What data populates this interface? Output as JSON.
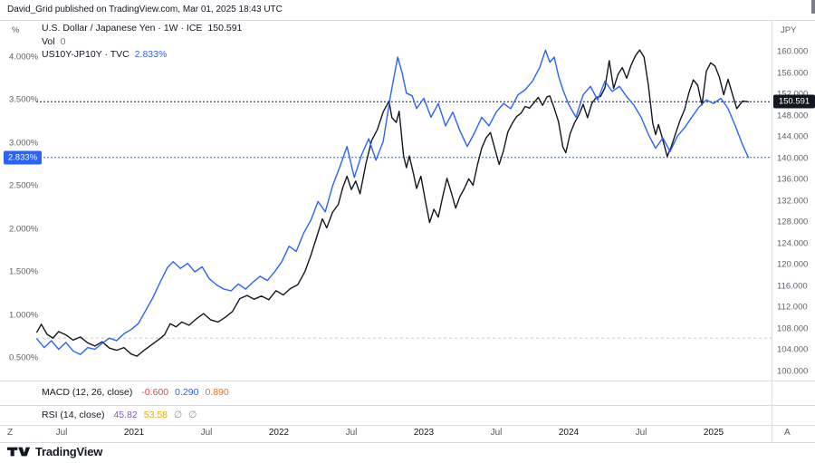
{
  "header": {
    "attribution": "David_Grid published on TradingView.com, Mar 01, 2025 18:43 UTC"
  },
  "legend": {
    "symbol_row": {
      "title": "U.S. Dollar / Japanese Yen · 1W · ICE",
      "value": "150.591"
    },
    "volume_row": {
      "title": "Vol",
      "value": "0"
    },
    "spread_row": {
      "title": "US10Y-JP10Y · TVC",
      "value": "2.833%"
    }
  },
  "axes": {
    "left": {
      "unit": "%",
      "ticks": [
        4.0,
        3.5,
        3.0,
        2.5,
        2.0,
        1.5,
        1.0,
        0.5
      ],
      "badge": {
        "label": "2.833%",
        "value": 2.833,
        "bg": "#2962ff"
      }
    },
    "right": {
      "unit": "JPY",
      "ticks": [
        160,
        156,
        152,
        148,
        144,
        140,
        136,
        132,
        128,
        124,
        120,
        116,
        112,
        108,
        104,
        100
      ],
      "badge": {
        "label": "150.591",
        "value": 150.591,
        "bg": "#131722"
      }
    },
    "time": {
      "ticks": [
        {
          "label": "Jul",
          "year": 2020.5
        },
        {
          "label": "2021",
          "year": 2021
        },
        {
          "label": "Jul",
          "year": 2021.5
        },
        {
          "label": "2022",
          "year": 2022
        },
        {
          "label": "Jul",
          "year": 2022.5
        },
        {
          "label": "2023",
          "year": 2023
        },
        {
          "label": "Jul",
          "year": 2023.5
        },
        {
          "label": "2024",
          "year": 2024
        },
        {
          "label": "Jul",
          "year": 2024.5
        },
        {
          "label": "2025",
          "year": 2025
        }
      ],
      "left_hint": "Z",
      "right_hint": "A"
    }
  },
  "indicators": [
    {
      "name": "MACD (12, 26, close)",
      "values": [
        {
          "text": "-0.600",
          "color": "#f23645"
        },
        {
          "text": "0.290",
          "color": "#2962ff"
        },
        {
          "text": "0.890",
          "color": "#ff6d00"
        }
      ]
    },
    {
      "name": "RSI (14, close)",
      "values": [
        {
          "text": "45.82",
          "color": "#7e57c2"
        },
        {
          "text": "53.58",
          "color": "#e6b000"
        },
        {
          "text": "∅",
          "color": "#9598a1"
        },
        {
          "text": "∅",
          "color": "#9598a1"
        }
      ]
    }
  ],
  "footer": {
    "brand": "TradingView"
  },
  "chart_data": {
    "type": "line",
    "title": "USD/JPY (1W) vs US10Y-JP10Y yield spread",
    "x_unit": "decimal_year",
    "x_range": [
      2020.3,
      2025.3
    ],
    "left_axis": {
      "unit": "%",
      "range": [
        0.3,
        4.4
      ],
      "ticks": [
        0.5,
        1.0,
        1.5,
        2.0,
        2.5,
        3.0,
        3.5,
        4.0
      ]
    },
    "right_axis": {
      "unit": "JPY",
      "range": [
        98,
        164
      ],
      "ticks": [
        100,
        104,
        108,
        112,
        116,
        120,
        124,
        128,
        132,
        136,
        140,
        144,
        148,
        152,
        156,
        160
      ]
    },
    "grid": false,
    "legend_position": "top-left",
    "reference_lines": [
      {
        "id": "usdjpy-last-price-line",
        "axis": "right",
        "value": 150.591,
        "color": "#131722",
        "dash": "2 2"
      },
      {
        "id": "spread-last-price-line",
        "axis": "left",
        "value": 2.833,
        "color": "#2962ff",
        "dash": "2 2"
      },
      {
        "id": "volume-baseline-line",
        "axis": "right",
        "value": 106.2,
        "color": "#c5c8d0",
        "dash": "3 3"
      }
    ],
    "series": [
      {
        "id": "usdjpy-series",
        "name": "U.S. Dollar / Japanese Yen (1W, ICE)",
        "axis": "right",
        "unit": "JPY",
        "color": "#131722",
        "last": 150.591,
        "points": [
          [
            2020.33,
            107.3
          ],
          [
            2020.36,
            108.8
          ],
          [
            2020.4,
            106.9
          ],
          [
            2020.44,
            106.2
          ],
          [
            2020.48,
            107.4
          ],
          [
            2020.53,
            106.8
          ],
          [
            2020.58,
            105.8
          ],
          [
            2020.63,
            106.4
          ],
          [
            2020.68,
            105.3
          ],
          [
            2020.73,
            104.7
          ],
          [
            2020.78,
            105.5
          ],
          [
            2020.83,
            104.3
          ],
          [
            2020.88,
            103.9
          ],
          [
            2020.93,
            104.4
          ],
          [
            2020.98,
            103.2
          ],
          [
            2021.02,
            102.8
          ],
          [
            2021.07,
            103.9
          ],
          [
            2021.12,
            104.9
          ],
          [
            2021.17,
            105.9
          ],
          [
            2021.21,
            106.8
          ],
          [
            2021.25,
            108.9
          ],
          [
            2021.29,
            108.3
          ],
          [
            2021.33,
            109.2
          ],
          [
            2021.38,
            108.6
          ],
          [
            2021.43,
            109.8
          ],
          [
            2021.48,
            110.8
          ],
          [
            2021.53,
            109.6
          ],
          [
            2021.58,
            109.2
          ],
          [
            2021.63,
            110.1
          ],
          [
            2021.68,
            111.2
          ],
          [
            2021.73,
            113.6
          ],
          [
            2021.78,
            114.2
          ],
          [
            2021.83,
            113.5
          ],
          [
            2021.88,
            114.1
          ],
          [
            2021.93,
            113.4
          ],
          [
            2021.98,
            115.1
          ],
          [
            2022.03,
            114.3
          ],
          [
            2022.08,
            115.5
          ],
          [
            2022.13,
            116.2
          ],
          [
            2022.18,
            118.7
          ],
          [
            2022.22,
            121.7
          ],
          [
            2022.26,
            125.1
          ],
          [
            2022.3,
            128.6
          ],
          [
            2022.33,
            126.9
          ],
          [
            2022.37,
            129.8
          ],
          [
            2022.41,
            131.3
          ],
          [
            2022.44,
            134.4
          ],
          [
            2022.47,
            136.6
          ],
          [
            2022.5,
            134.1
          ],
          [
            2022.53,
            135.7
          ],
          [
            2022.56,
            133.3
          ],
          [
            2022.6,
            138.9
          ],
          [
            2022.64,
            143.3
          ],
          [
            2022.68,
            145.4
          ],
          [
            2022.72,
            148.7
          ],
          [
            2022.76,
            150.7
          ],
          [
            2022.78,
            147.6
          ],
          [
            2022.81,
            146.7
          ],
          [
            2022.83,
            148.8
          ],
          [
            2022.86,
            140.5
          ],
          [
            2022.88,
            138.2
          ],
          [
            2022.9,
            140.4
          ],
          [
            2022.93,
            136.9
          ],
          [
            2022.95,
            134.3
          ],
          [
            2022.98,
            136.6
          ],
          [
            2023.01,
            132.1
          ],
          [
            2023.04,
            127.9
          ],
          [
            2023.07,
            130.4
          ],
          [
            2023.1,
            128.9
          ],
          [
            2023.13,
            132.7
          ],
          [
            2023.16,
            136.2
          ],
          [
            2023.19,
            133.5
          ],
          [
            2023.22,
            130.6
          ],
          [
            2023.25,
            132.8
          ],
          [
            2023.28,
            134.3
          ],
          [
            2023.31,
            136.1
          ],
          [
            2023.34,
            134.9
          ],
          [
            2023.37,
            138.7
          ],
          [
            2023.4,
            141.9
          ],
          [
            2023.43,
            143.8
          ],
          [
            2023.46,
            144.8
          ],
          [
            2023.49,
            141.8
          ],
          [
            2023.52,
            138.8
          ],
          [
            2023.55,
            141.4
          ],
          [
            2023.58,
            144.9
          ],
          [
            2023.61,
            146.5
          ],
          [
            2023.64,
            147.8
          ],
          [
            2023.67,
            148.4
          ],
          [
            2023.7,
            149.7
          ],
          [
            2023.73,
            149.4
          ],
          [
            2023.76,
            150.4
          ],
          [
            2023.79,
            151.4
          ],
          [
            2023.82,
            149.9
          ],
          [
            2023.85,
            151.5
          ],
          [
            2023.87,
            151.7
          ],
          [
            2023.9,
            149.4
          ],
          [
            2023.93,
            146.8
          ],
          [
            2023.96,
            142.1
          ],
          [
            2023.98,
            141.0
          ],
          [
            2024.01,
            144.6
          ],
          [
            2024.04,
            146.6
          ],
          [
            2024.07,
            148.1
          ],
          [
            2024.1,
            150.1
          ],
          [
            2024.13,
            147.6
          ],
          [
            2024.16,
            150.3
          ],
          [
            2024.19,
            151.4
          ],
          [
            2024.22,
            151.6
          ],
          [
            2024.25,
            153.2
          ],
          [
            2024.28,
            158.3
          ],
          [
            2024.31,
            153.1
          ],
          [
            2024.34,
            155.7
          ],
          [
            2024.37,
            157.0
          ],
          [
            2024.4,
            155.0
          ],
          [
            2024.43,
            157.4
          ],
          [
            2024.46,
            159.2
          ],
          [
            2024.49,
            160.3
          ],
          [
            2024.52,
            159.0
          ],
          [
            2024.55,
            153.7
          ],
          [
            2024.58,
            146.6
          ],
          [
            2024.6,
            144.4
          ],
          [
            2024.62,
            146.3
          ],
          [
            2024.65,
            143.4
          ],
          [
            2024.68,
            140.3
          ],
          [
            2024.71,
            142.3
          ],
          [
            2024.74,
            144.8
          ],
          [
            2024.77,
            147.2
          ],
          [
            2024.8,
            149.1
          ],
          [
            2024.83,
            152.3
          ],
          [
            2024.86,
            154.7
          ],
          [
            2024.89,
            153.7
          ],
          [
            2024.92,
            150.0
          ],
          [
            2024.95,
            156.3
          ],
          [
            2024.98,
            157.9
          ],
          [
            2025.01,
            157.3
          ],
          [
            2025.04,
            155.2
          ],
          [
            2025.07,
            151.9
          ],
          [
            2025.1,
            154.8
          ],
          [
            2025.13,
            152.0
          ],
          [
            2025.16,
            149.3
          ],
          [
            2025.2,
            150.7
          ],
          [
            2025.24,
            150.591
          ]
        ]
      },
      {
        "id": "spread-series",
        "name": "US10Y-JP10Y (TVC)",
        "axis": "left",
        "unit": "%",
        "color": "#2962ff",
        "last": 2.833,
        "points": [
          [
            2020.33,
            0.72
          ],
          [
            2020.38,
            0.62
          ],
          [
            2020.43,
            0.7
          ],
          [
            2020.48,
            0.6
          ],
          [
            2020.53,
            0.68
          ],
          [
            2020.58,
            0.58
          ],
          [
            2020.63,
            0.54
          ],
          [
            2020.68,
            0.62
          ],
          [
            2020.73,
            0.6
          ],
          [
            2020.78,
            0.67
          ],
          [
            2020.83,
            0.73
          ],
          [
            2020.88,
            0.7
          ],
          [
            2020.93,
            0.78
          ],
          [
            2020.98,
            0.83
          ],
          [
            2021.03,
            0.9
          ],
          [
            2021.08,
            1.05
          ],
          [
            2021.13,
            1.2
          ],
          [
            2021.18,
            1.38
          ],
          [
            2021.23,
            1.55
          ],
          [
            2021.27,
            1.62
          ],
          [
            2021.32,
            1.54
          ],
          [
            2021.37,
            1.6
          ],
          [
            2021.42,
            1.5
          ],
          [
            2021.47,
            1.56
          ],
          [
            2021.52,
            1.42
          ],
          [
            2021.57,
            1.35
          ],
          [
            2021.62,
            1.3
          ],
          [
            2021.67,
            1.28
          ],
          [
            2021.72,
            1.36
          ],
          [
            2021.77,
            1.3
          ],
          [
            2021.82,
            1.38
          ],
          [
            2021.87,
            1.45
          ],
          [
            2021.92,
            1.4
          ],
          [
            2021.97,
            1.5
          ],
          [
            2022.02,
            1.62
          ],
          [
            2022.07,
            1.8
          ],
          [
            2022.12,
            1.74
          ],
          [
            2022.17,
            1.95
          ],
          [
            2022.22,
            2.1
          ],
          [
            2022.27,
            2.32
          ],
          [
            2022.32,
            2.2
          ],
          [
            2022.37,
            2.5
          ],
          [
            2022.42,
            2.72
          ],
          [
            2022.47,
            2.96
          ],
          [
            2022.52,
            2.6
          ],
          [
            2022.57,
            2.86
          ],
          [
            2022.62,
            3.05
          ],
          [
            2022.67,
            2.8
          ],
          [
            2022.72,
            3.02
          ],
          [
            2022.77,
            3.55
          ],
          [
            2022.82,
            4.0
          ],
          [
            2022.85,
            3.82
          ],
          [
            2022.88,
            3.58
          ],
          [
            2022.92,
            3.55
          ],
          [
            2022.95,
            3.4
          ],
          [
            2023.0,
            3.52
          ],
          [
            2023.05,
            3.3
          ],
          [
            2023.1,
            3.46
          ],
          [
            2023.15,
            3.2
          ],
          [
            2023.2,
            3.36
          ],
          [
            2023.25,
            3.14
          ],
          [
            2023.3,
            2.96
          ],
          [
            2023.35,
            3.12
          ],
          [
            2023.4,
            3.3
          ],
          [
            2023.45,
            3.2
          ],
          [
            2023.5,
            3.36
          ],
          [
            2023.55,
            3.46
          ],
          [
            2023.6,
            3.4
          ],
          [
            2023.65,
            3.56
          ],
          [
            2023.7,
            3.62
          ],
          [
            2023.75,
            3.72
          ],
          [
            2023.8,
            3.88
          ],
          [
            2023.84,
            4.08
          ],
          [
            2023.87,
            3.94
          ],
          [
            2023.9,
            4.0
          ],
          [
            2023.93,
            3.78
          ],
          [
            2023.96,
            3.62
          ],
          [
            2024.0,
            3.45
          ],
          [
            2024.05,
            3.3
          ],
          [
            2024.1,
            3.56
          ],
          [
            2024.15,
            3.66
          ],
          [
            2024.2,
            3.5
          ],
          [
            2024.25,
            3.72
          ],
          [
            2024.3,
            3.6
          ],
          [
            2024.35,
            3.66
          ],
          [
            2024.4,
            3.54
          ],
          [
            2024.45,
            3.44
          ],
          [
            2024.5,
            3.3
          ],
          [
            2024.55,
            3.1
          ],
          [
            2024.6,
            2.94
          ],
          [
            2024.65,
            3.06
          ],
          [
            2024.7,
            2.9
          ],
          [
            2024.75,
            3.08
          ],
          [
            2024.8,
            3.18
          ],
          [
            2024.85,
            3.3
          ],
          [
            2024.9,
            3.42
          ],
          [
            2024.95,
            3.5
          ],
          [
            2025.0,
            3.46
          ],
          [
            2025.05,
            3.52
          ],
          [
            2025.1,
            3.4
          ],
          [
            2025.15,
            3.2
          ],
          [
            2025.2,
            2.98
          ],
          [
            2025.24,
            2.833
          ]
        ]
      }
    ]
  }
}
